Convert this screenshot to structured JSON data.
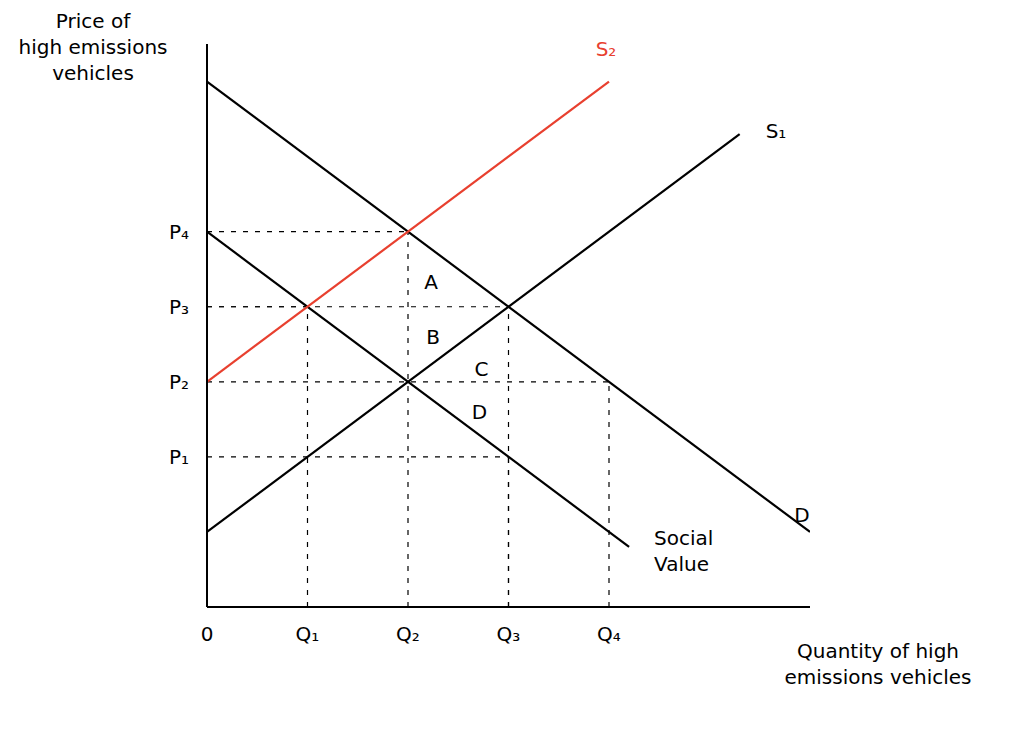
{
  "chart_data": {
    "type": "line",
    "title_y": "Price of\nhigh emissions\nvehicles",
    "title_x": "Quantity of high\nemissions vehicles",
    "xlim": [
      0,
      6
    ],
    "ylim": [
      0,
      7.5
    ],
    "xticks": [
      0,
      {
        "value": 1,
        "label": "Q₁"
      },
      {
        "value": 2,
        "label": "Q₂"
      },
      {
        "value": 3,
        "label": "Q₃"
      },
      {
        "value": 4,
        "label": "Q₄"
      }
    ],
    "yticks": [
      {
        "value": 2,
        "label": "P₁"
      },
      {
        "value": 3,
        "label": "P₂"
      },
      {
        "value": 4,
        "label": "P₃"
      },
      {
        "value": 5,
        "label": "P₄"
      }
    ],
    "grid": false,
    "legend": "none",
    "series": [
      {
        "name": "D",
        "color": "#000000",
        "x": [
          0,
          6
        ],
        "values": [
          7,
          1
        ]
      },
      {
        "name": "Social\nValue",
        "color": "#000000",
        "x": [
          0,
          4.2
        ],
        "values": [
          5,
          0.8
        ]
      },
      {
        "name": "S₁",
        "color": "#000000",
        "x": [
          0,
          5.3
        ],
        "values": [
          1,
          6.3
        ]
      },
      {
        "name": "S₂",
        "color": "#e8402f",
        "x": [
          0,
          4
        ],
        "values": [
          3,
          7
        ]
      }
    ],
    "dashed_points": [
      {
        "x": 2,
        "y": 5
      },
      {
        "x": 1,
        "y": 4
      },
      {
        "x": 3,
        "y": 4
      },
      {
        "x": 4,
        "y": 3
      },
      {
        "x": 3,
        "y": 2
      }
    ],
    "annotations": [
      {
        "text": "A",
        "x": 2.23,
        "y": 4.32
      },
      {
        "text": "B",
        "x": 2.25,
        "y": 3.59
      },
      {
        "text": "C",
        "x": 2.73,
        "y": 3.16
      },
      {
        "text": "D",
        "x": 2.71,
        "y": 2.59
      }
    ]
  }
}
